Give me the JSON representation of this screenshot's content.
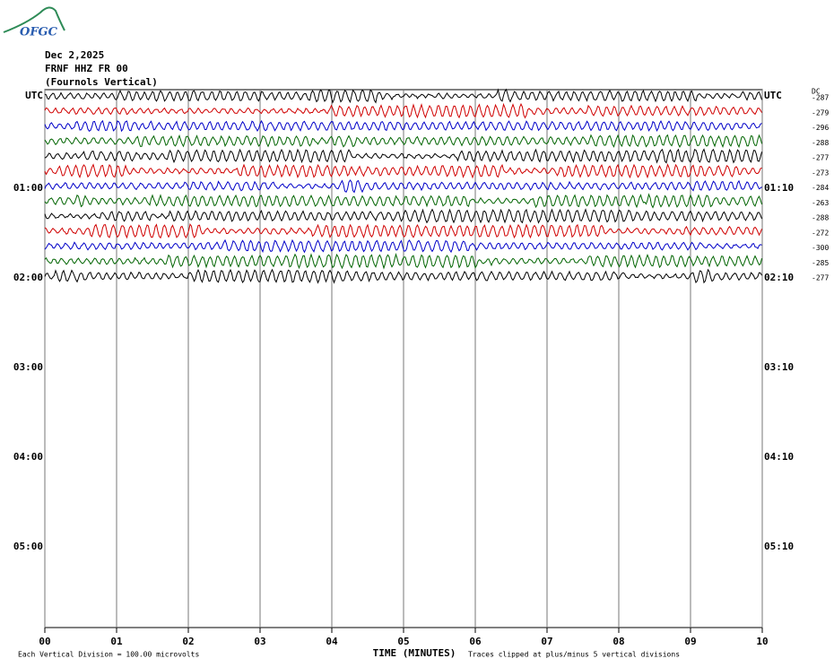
{
  "logo": {
    "text": "OFGC"
  },
  "header": {
    "date": "Dec 2,2025",
    "station": "FRNF HHZ FR 00",
    "description": "(Fournols Vertical)"
  },
  "left_labels": [
    "UTC",
    "01:00",
    "02:00",
    "03:00",
    "04:00",
    "05:00"
  ],
  "right_labels": [
    "UTC",
    "01:10",
    "02:10",
    "03:10",
    "04:10",
    "05:10"
  ],
  "dc_label": "DC",
  "dc_offsets": [
    -287,
    -279,
    -296,
    -288,
    -277,
    -273,
    -284,
    -263,
    -288,
    -272,
    -300,
    -285,
    -277
  ],
  "trace_colors": [
    "#000000",
    "#d00000",
    "#0000c8",
    "#006400"
  ],
  "x_axis": {
    "label": "TIME (MINUTES)",
    "ticks": [
      "00",
      "01",
      "02",
      "03",
      "04",
      "05",
      "06",
      "07",
      "08",
      "09",
      "10"
    ]
  },
  "footer": {
    "scale": "Each Vertical Division =  100.00 microvolts",
    "clipping": "Traces clipped at plus/minus 5 vertical divisions"
  }
}
